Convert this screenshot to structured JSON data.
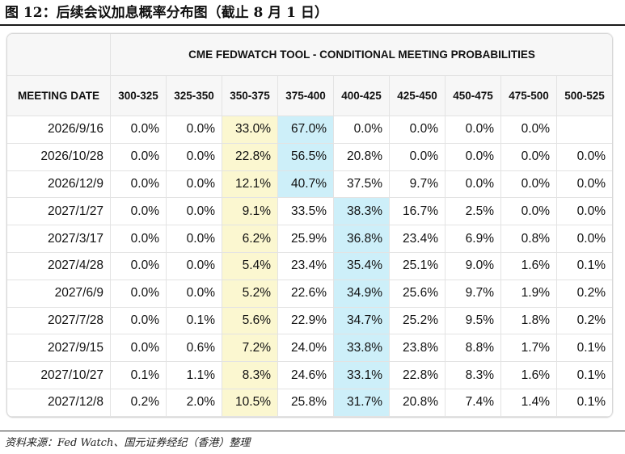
{
  "figure": {
    "title": "图 12：后续会议加息概率分布图（截止 8 月 1 日）",
    "source": "资料来源：Fed Watch、国元证券经纪（香港）整理"
  },
  "chart_data": {
    "type": "table",
    "title": "CME FEDWATCH TOOL - CONDITIONAL MEETING PROBABILITIES",
    "row_header_label": "MEETING DATE",
    "columns": [
      "300-325",
      "325-350",
      "350-375",
      "375-400",
      "400-425",
      "425-450",
      "450-475",
      "475-500",
      "500-525"
    ],
    "rows": [
      {
        "date": "2026/9/16",
        "values": [
          "0.0%",
          "0.0%",
          "33.0%",
          "67.0%",
          "0.0%",
          "0.0%",
          "0.0%",
          "0.0%",
          ""
        ],
        "highlight": [
          2,
          3
        ]
      },
      {
        "date": "2026/10/28",
        "values": [
          "0.0%",
          "0.0%",
          "22.8%",
          "56.5%",
          "20.8%",
          "0.0%",
          "0.0%",
          "0.0%",
          "0.0%"
        ],
        "highlight": [
          2,
          3
        ]
      },
      {
        "date": "2026/12/9",
        "values": [
          "0.0%",
          "0.0%",
          "12.1%",
          "40.7%",
          "37.5%",
          "9.7%",
          "0.0%",
          "0.0%",
          "0.0%"
        ],
        "highlight": [
          2,
          3
        ]
      },
      {
        "date": "2027/1/27",
        "values": [
          "0.0%",
          "0.0%",
          "9.1%",
          "33.5%",
          "38.3%",
          "16.7%",
          "2.5%",
          "0.0%",
          "0.0%"
        ],
        "highlight": [
          2,
          4
        ]
      },
      {
        "date": "2027/3/17",
        "values": [
          "0.0%",
          "0.0%",
          "6.2%",
          "25.9%",
          "36.8%",
          "23.4%",
          "6.9%",
          "0.8%",
          "0.0%"
        ],
        "highlight": [
          2,
          4
        ]
      },
      {
        "date": "2027/4/28",
        "values": [
          "0.0%",
          "0.0%",
          "5.4%",
          "23.4%",
          "35.4%",
          "25.1%",
          "9.0%",
          "1.6%",
          "0.1%"
        ],
        "highlight": [
          2,
          4
        ]
      },
      {
        "date": "2027/6/9",
        "values": [
          "0.0%",
          "0.0%",
          "5.2%",
          "22.6%",
          "34.9%",
          "25.6%",
          "9.7%",
          "1.9%",
          "0.2%"
        ],
        "highlight": [
          2,
          4
        ]
      },
      {
        "date": "2027/7/28",
        "values": [
          "0.0%",
          "0.1%",
          "5.6%",
          "22.9%",
          "34.7%",
          "25.2%",
          "9.5%",
          "1.8%",
          "0.2%"
        ],
        "highlight": [
          2,
          4
        ]
      },
      {
        "date": "2027/9/15",
        "values": [
          "0.0%",
          "0.6%",
          "7.2%",
          "24.0%",
          "33.8%",
          "23.8%",
          "8.8%",
          "1.7%",
          "0.1%"
        ],
        "highlight": [
          2,
          4
        ]
      },
      {
        "date": "2027/10/27",
        "values": [
          "0.1%",
          "1.1%",
          "8.3%",
          "24.6%",
          "33.1%",
          "22.8%",
          "8.3%",
          "1.6%",
          "0.1%"
        ],
        "highlight": [
          2,
          4
        ]
      },
      {
        "date": "2027/12/8",
        "values": [
          "0.2%",
          "2.0%",
          "10.5%",
          "25.8%",
          "31.7%",
          "20.8%",
          "7.4%",
          "1.4%",
          "0.1%"
        ],
        "highlight": [
          2,
          4
        ]
      }
    ],
    "colors": {
      "current_target": "#fbf7d0",
      "most_likely": "#cdeff9"
    }
  }
}
